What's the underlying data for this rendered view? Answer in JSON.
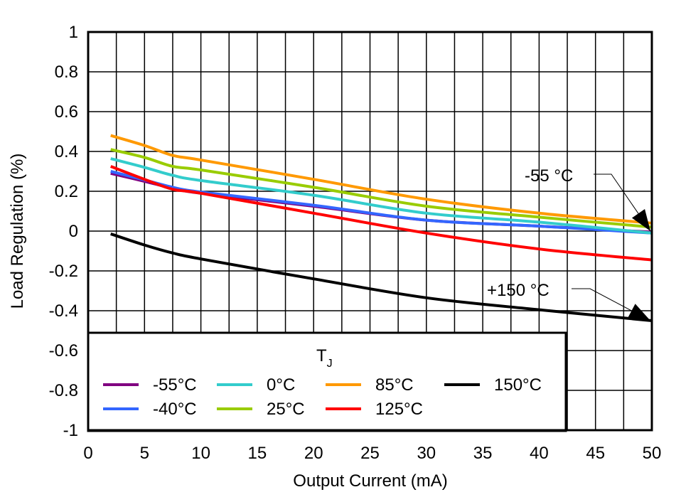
{
  "chart_data": {
    "type": "line",
    "title": "",
    "xlabel": "Output Current (mA)",
    "ylabel": "Load Regulation (%)",
    "xlim": [
      0,
      50
    ],
    "ylim": [
      -1,
      1
    ],
    "xticks": [
      0,
      5,
      10,
      15,
      20,
      25,
      30,
      35,
      40,
      45,
      50
    ],
    "yticks": [
      1,
      0.8,
      0.6,
      0.4,
      0.2,
      0,
      -0.2,
      -0.4,
      -0.6,
      -0.8,
      -1
    ],
    "ytick_labels": [
      "1",
      "0.8",
      "0.6",
      "0.4",
      "0.2",
      "0",
      "-0.2",
      "-0.4",
      "-0.6",
      "-0.8",
      "-1"
    ],
    "grid": true,
    "legend_title": "T",
    "legend_title_sub": "J",
    "legend_placement": "bottom-left",
    "x": [
      2,
      5,
      7.5,
      10,
      20,
      30,
      40,
      50
    ],
    "series": [
      {
        "name": "-55°C",
        "color": "#800080",
        "values": [
          0.29,
          0.25,
          0.215,
          0.19,
          0.125,
          0.055,
          0.025,
          -0.005
        ]
      },
      {
        "name": "-40°C",
        "color": "#3366ff",
        "values": [
          0.3,
          0.257,
          0.22,
          0.196,
          0.13,
          0.055,
          0.025,
          -0.01
        ]
      },
      {
        "name": "0°C",
        "color": "#33cccc",
        "values": [
          0.364,
          0.32,
          0.28,
          0.254,
          0.18,
          0.09,
          0.045,
          -0.01
        ]
      },
      {
        "name": "25°C",
        "color": "#99cc00",
        "values": [
          0.41,
          0.37,
          0.325,
          0.307,
          0.22,
          0.125,
          0.07,
          0.02
        ]
      },
      {
        "name": "85°C",
        "color": "#ff9900",
        "values": [
          0.48,
          0.43,
          0.38,
          0.357,
          0.26,
          0.16,
          0.09,
          0.04
        ]
      },
      {
        "name": "125°C",
        "color": "#ff0000",
        "values": [
          0.325,
          0.26,
          0.21,
          0.19,
          0.09,
          -0.01,
          -0.09,
          -0.145
        ]
      },
      {
        "name": "150°C",
        "color": "#000000",
        "values": [
          -0.014,
          -0.07,
          -0.11,
          -0.14,
          -0.24,
          -0.335,
          -0.395,
          -0.45
        ]
      }
    ],
    "annotations": [
      {
        "text": "-55 °C",
        "x": 50,
        "y": 0
      },
      {
        "text": "+150 °C",
        "x": 50,
        "y": -0.45
      }
    ]
  }
}
